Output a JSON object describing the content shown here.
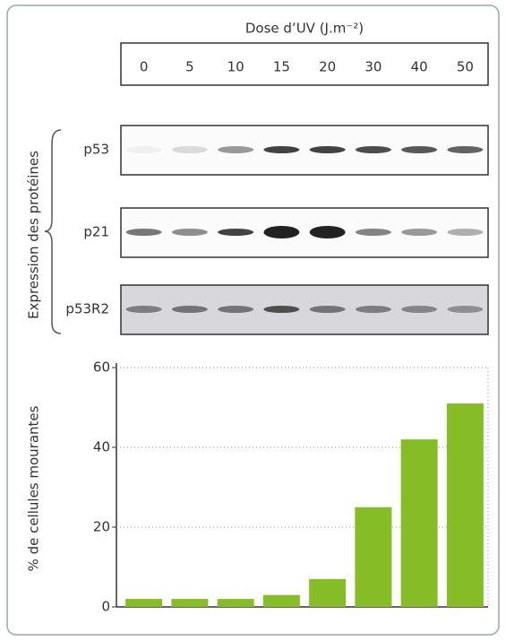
{
  "chart_data": {
    "type": "bar",
    "x_label": "Dose d’UV (J.m⁻²)",
    "y_label": "% de cellules mourantes",
    "blot_label": "Expression des protéines",
    "blot_rows": [
      "p53",
      "p21",
      "p53R2"
    ],
    "categories": [
      "0",
      "5",
      "10",
      "15",
      "20",
      "30",
      "40",
      "50"
    ],
    "values": [
      2,
      2,
      2,
      3,
      7,
      25,
      42,
      51
    ],
    "color": "#86bc25",
    "ylim": [
      0,
      60
    ],
    "yticks": [
      0,
      20,
      40,
      60
    ],
    "grid": true
  }
}
